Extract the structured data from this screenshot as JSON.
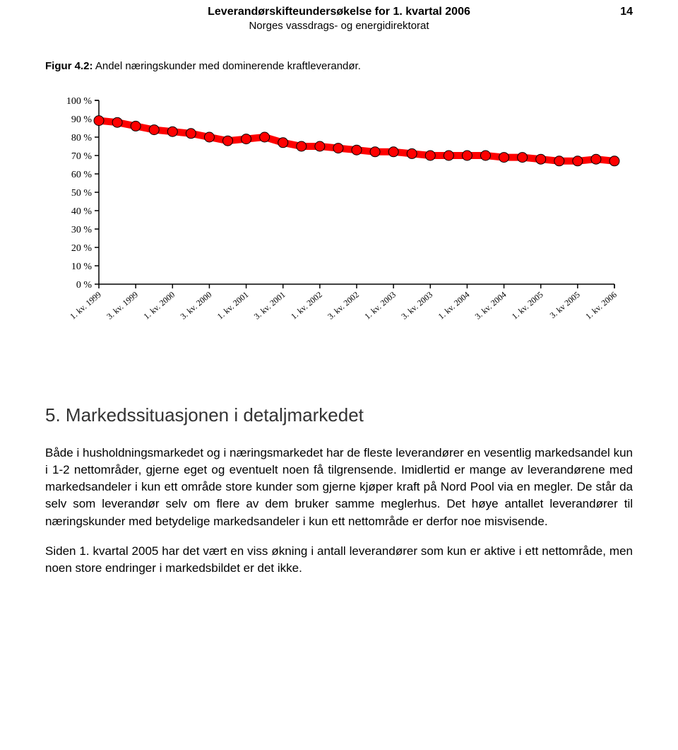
{
  "header": {
    "title": "Leverandørskifteundersøkelse for 1. kvartal 2006",
    "subtitle": "Norges vassdrags- og energidirektorat",
    "page_number": "14"
  },
  "figure": {
    "caption_label": "Figur 4.2:",
    "caption_text": " Andel næringskunder med dominerende kraftleverandør."
  },
  "chart": {
    "type": "line",
    "background_color": "#ffffff",
    "axis_color": "#000000",
    "tick_color": "#000000",
    "line_color": "#ff0000",
    "marker_fill_color": "#ff0000",
    "marker_stroke_color": "#000000",
    "marker_radius": 7,
    "line_width": 10,
    "y_axis": {
      "min": 0,
      "max": 100,
      "tick_step": 10,
      "tick_labels": [
        "0 %",
        "10 %",
        "20 %",
        "30 %",
        "40 %",
        "50 %",
        "60 %",
        "70 %",
        "80 %",
        "90 %",
        "100 %"
      ],
      "label_fontsize": 14
    },
    "x_axis": {
      "categories": [
        "1. kv. 1999",
        "3. kv. 1999",
        "1. kv. 2000",
        "3. kv. 2000",
        "1. kv. 2001",
        "3. kv. 2001",
        "1. kv. 2002",
        "3. kv. 2002",
        "1. kv. 2003",
        "3. kv. 2003",
        "1. kv. 2004",
        "3. kv. 2004",
        "1. kv. 2005",
        "3. kv 2005",
        "1. kv. 2006"
      ],
      "label_fontsize": 12,
      "label_rotation_deg": 40
    },
    "series": {
      "name": "Andel",
      "values": [
        89,
        88,
        86,
        84,
        83,
        82,
        80,
        78,
        79,
        80,
        77,
        75,
        75,
        74,
        73,
        72,
        72,
        71,
        70,
        70,
        70,
        70,
        69,
        69,
        68,
        67,
        67,
        68,
        67
      ]
    }
  },
  "section": {
    "heading": "5. Markedssituasjonen i detaljmarkedet",
    "paragraph1": "Både i husholdningsmarkedet og i næringsmarkedet har de fleste leverandører en vesentlig markedsandel kun i 1-2 nettområder, gjerne eget og eventuelt noen få tilgrensende. Imidlertid er mange av leverandørene med markedsandeler i kun ett område store kunder som gjerne kjøper kraft på Nord Pool via en megler. De står da selv som leverandør selv om flere av dem bruker samme meglerhus. Det høye antallet leverandører til næringskunder med betydelige markedsandeler i kun ett nettområde er derfor noe misvisende.",
    "paragraph2": "Siden 1. kvartal 2005 har det vært en viss økning i antall leverandører som kun er aktive i ett nettområde, men noen store endringer i markedsbildet er det ikke."
  }
}
